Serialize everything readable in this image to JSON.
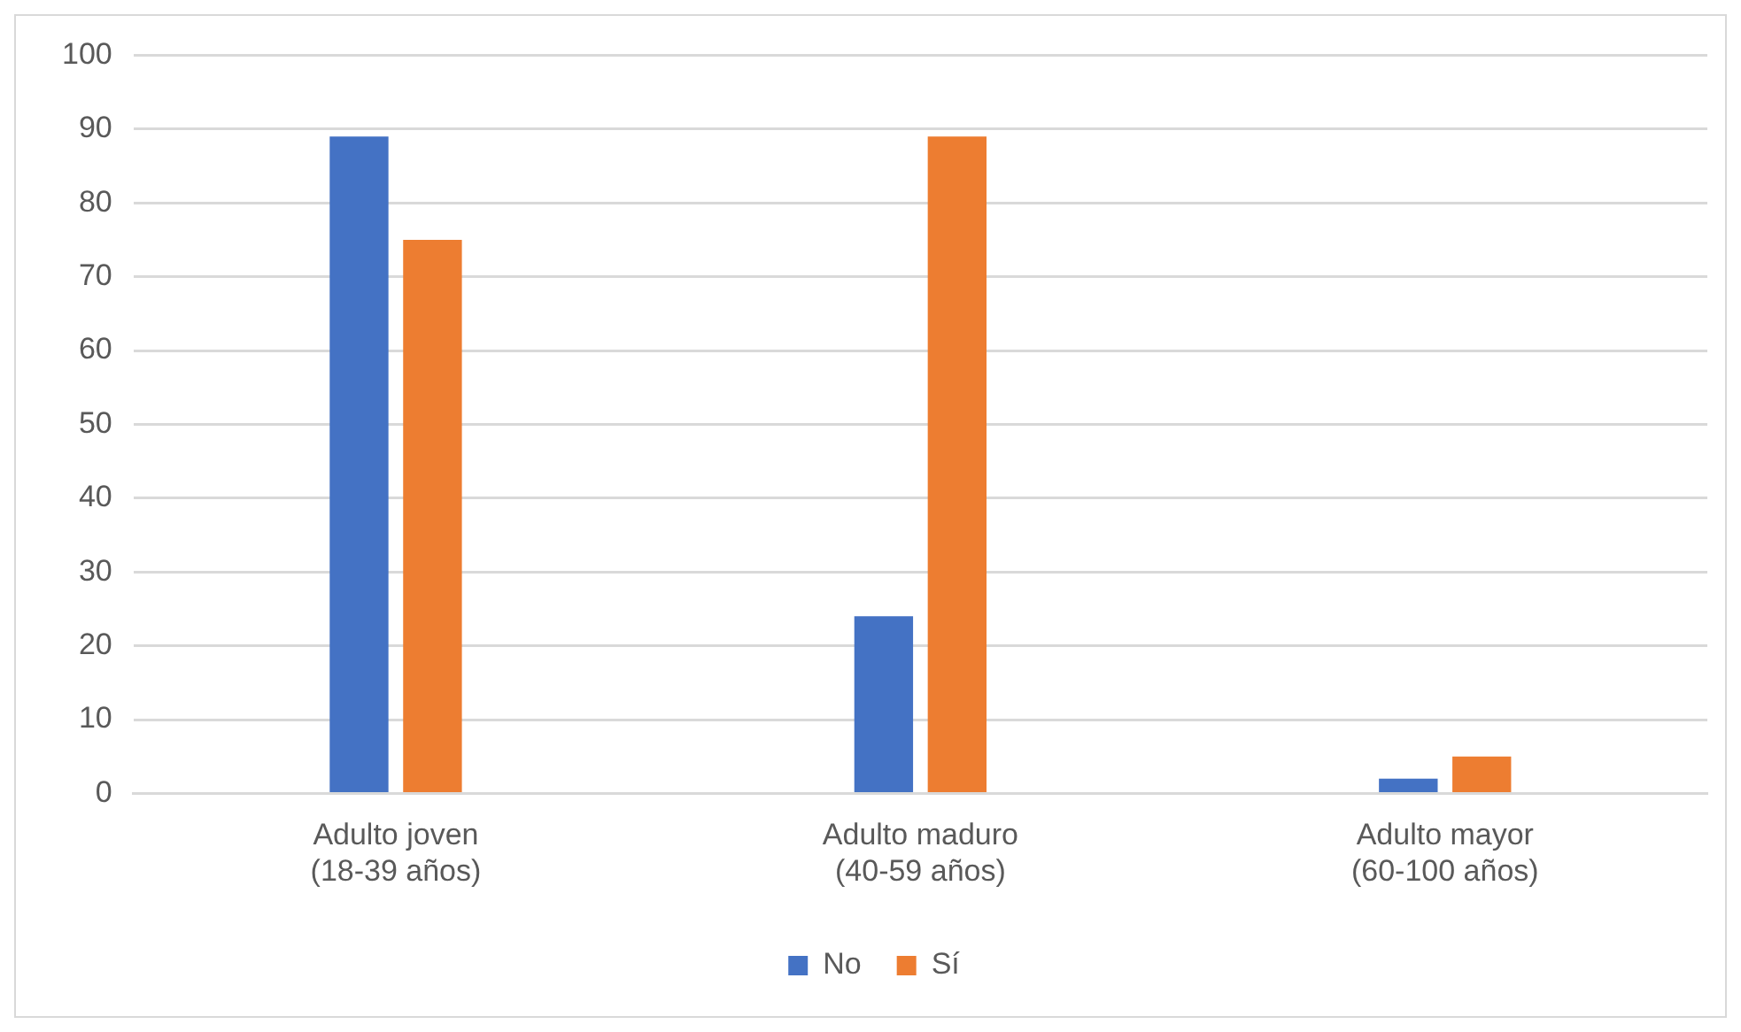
{
  "chart_data": {
    "type": "bar",
    "categories": [
      "Adulto joven (18-39 años)",
      "Adulto maduro (40-59 años)",
      "Adulto mayor (60-100 años)"
    ],
    "series": [
      {
        "name": "No",
        "color": "#4472c4",
        "values": [
          89,
          24,
          2
        ]
      },
      {
        "name": "Sí",
        "color": "#ed7d31",
        "values": [
          75,
          89,
          5
        ]
      }
    ],
    "ylim": [
      0,
      100
    ],
    "yticks": [
      0,
      10,
      20,
      30,
      40,
      50,
      60,
      70,
      80,
      90,
      100
    ],
    "grid": "y",
    "legend": "bottom"
  }
}
